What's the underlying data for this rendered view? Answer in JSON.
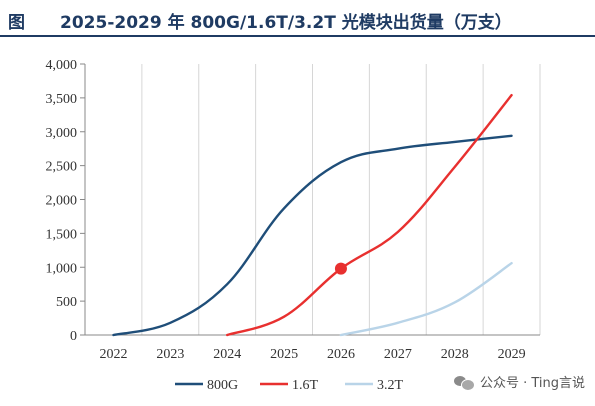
{
  "header": {
    "fig_label": "图",
    "title": "2025-2029 年 800G/1.6T/3.2T 光模块出货量（万支）"
  },
  "watermark": {
    "text": "公众号 · Ting言说",
    "icon": "wechat-icon"
  },
  "chart_data": {
    "type": "line",
    "title": "2025-2029 年 800G/1.6T/3.2T 光模块出货量（万支）",
    "xlabel": "",
    "ylabel": "",
    "categories": [
      "2022",
      "2023",
      "2024",
      "2025",
      "2026",
      "2027",
      "2028",
      "2029"
    ],
    "ylim": [
      0,
      4000
    ],
    "yticks": [
      0,
      500,
      1000,
      1500,
      2000,
      2500,
      3000,
      3500,
      4000
    ],
    "ytick_labels": [
      "0",
      "500",
      "1,000",
      "1,500",
      "2,000",
      "2,500",
      "3,000",
      "3,500",
      "4,000"
    ],
    "grid": "vertical",
    "legend_position": "bottom",
    "series": [
      {
        "name": "800G",
        "color": "#1f4e79",
        "values": [
          0,
          180,
          750,
          1870,
          2550,
          2750,
          2850,
          2940
        ]
      },
      {
        "name": "1.6T",
        "color": "#e8302f",
        "values": [
          null,
          null,
          0,
          270,
          980,
          1520,
          2480,
          3540
        ],
        "highlight_index": 4
      },
      {
        "name": "3.2T",
        "color": "#b9d4e8",
        "values": [
          null,
          null,
          null,
          null,
          0,
          180,
          480,
          1060
        ]
      }
    ]
  }
}
